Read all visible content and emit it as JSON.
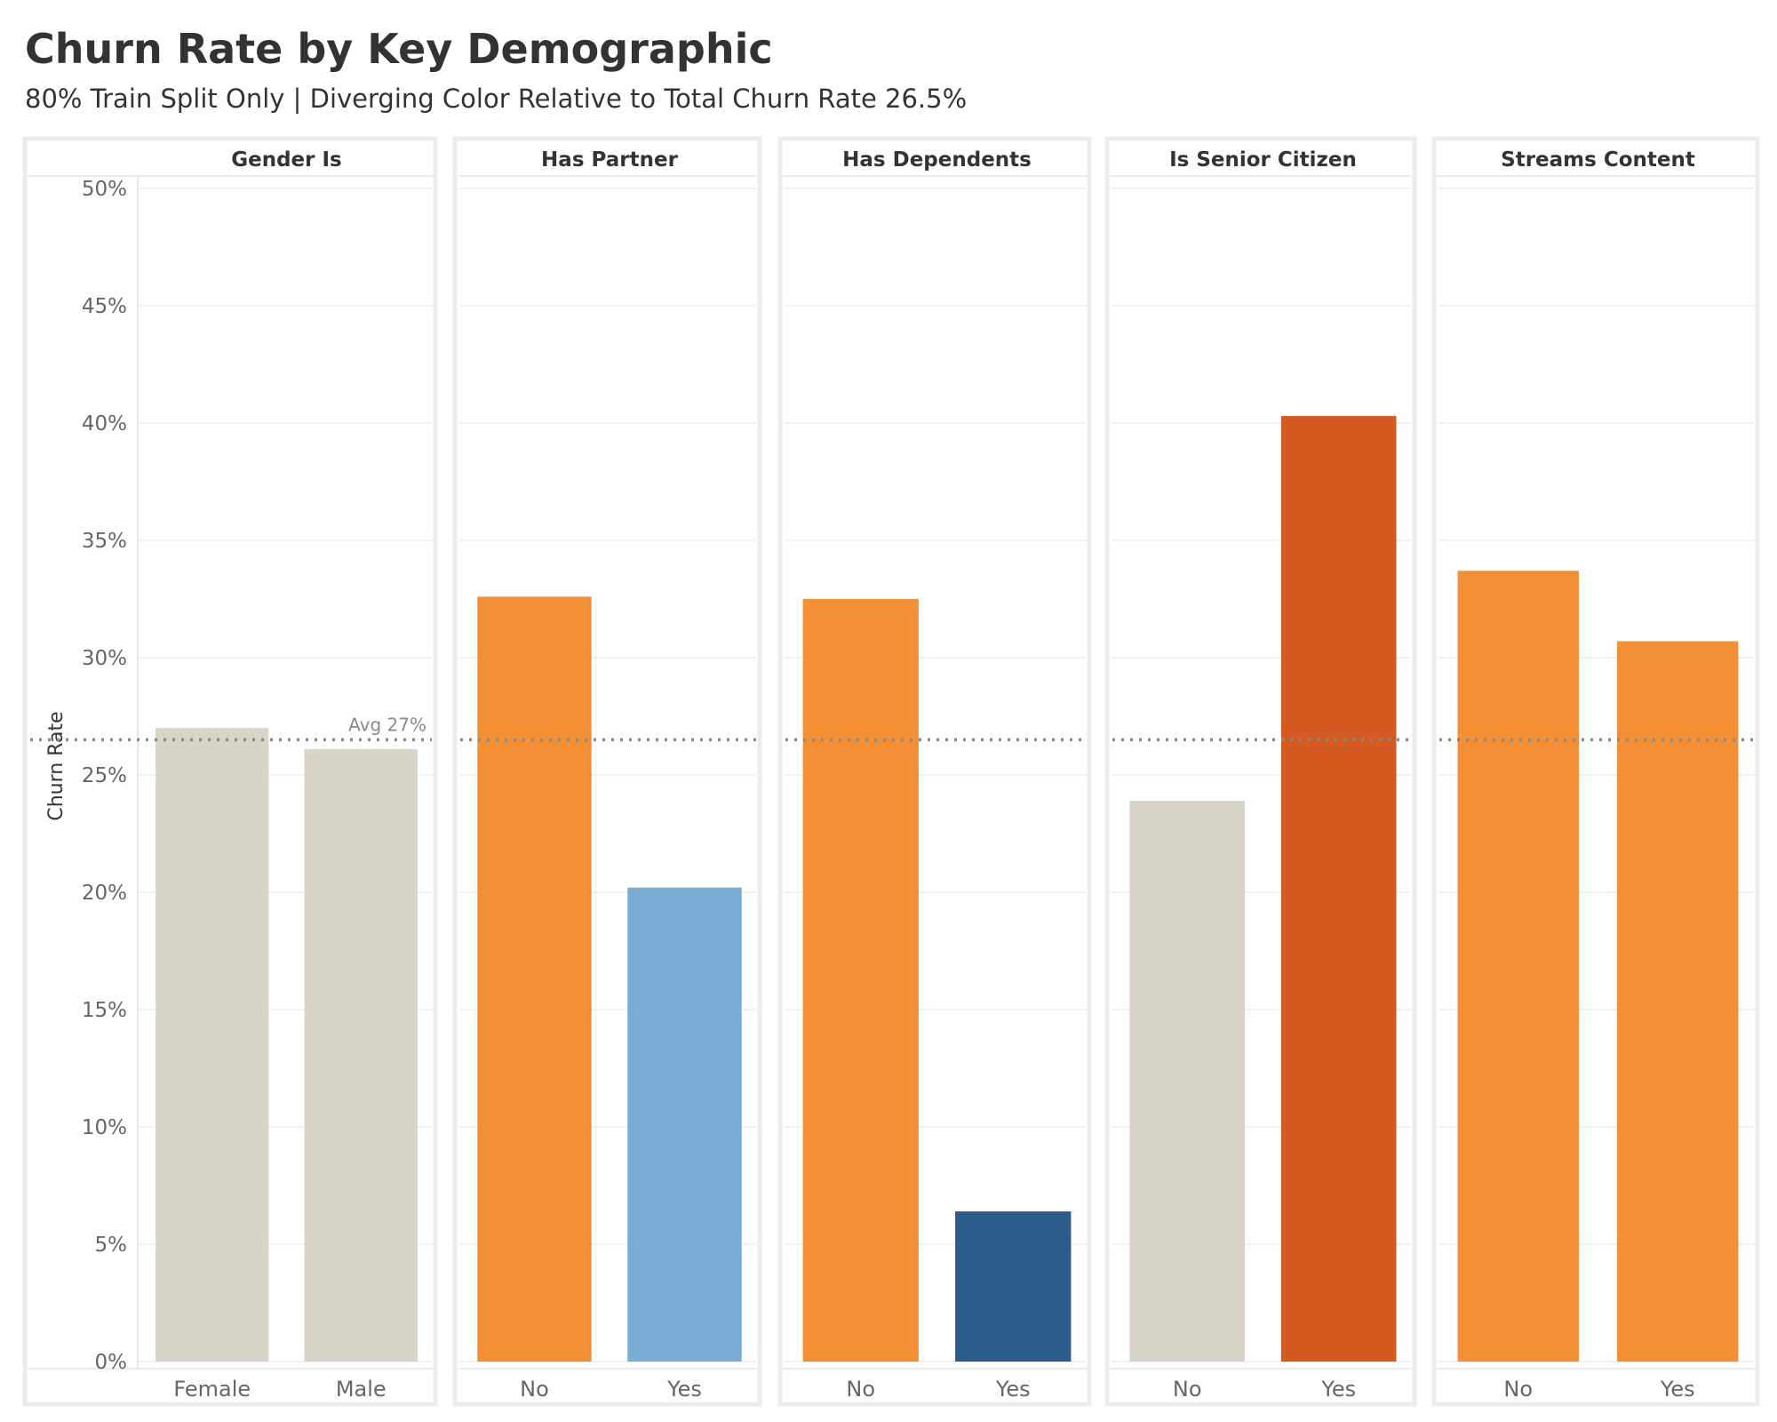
{
  "title": "Churn Rate by Key Demographic",
  "subtitle": "80% Train Split Only | Diverging Color Relative to Total Churn Rate 26.5%",
  "chart_data": {
    "type": "bar",
    "ylabel": "Churn Rate",
    "ylim": [
      0,
      50
    ],
    "yticks": [
      "0%",
      "5%",
      "10%",
      "15%",
      "20%",
      "25%",
      "30%",
      "35%",
      "40%",
      "45%",
      "50%"
    ],
    "reference_line": {
      "value": 26.5,
      "label": "Avg 27%",
      "style": "dotted",
      "color": "#888888"
    },
    "grid": true,
    "facets": [
      {
        "title": "Gender Is",
        "categories": [
          "Female",
          "Male"
        ],
        "values": [
          27.0,
          26.1
        ],
        "colors": [
          "#d8d4c8",
          "#d8d4c8"
        ]
      },
      {
        "title": "Has Partner",
        "categories": [
          "No",
          "Yes"
        ],
        "values": [
          32.6,
          20.2
        ],
        "colors": [
          "#f58f36",
          "#79acd2"
        ]
      },
      {
        "title": "Has Dependents",
        "categories": [
          "No",
          "Yes"
        ],
        "values": [
          32.5,
          6.4
        ],
        "colors": [
          "#f58f36",
          "#2c5d8a"
        ]
      },
      {
        "title": "Is Senior Citizen",
        "categories": [
          "No",
          "Yes"
        ],
        "values": [
          23.9,
          40.3
        ],
        "colors": [
          "#d8d4c8",
          "#d45a22"
        ]
      },
      {
        "title": "Streams Content",
        "categories": [
          "No",
          "Yes"
        ],
        "values": [
          33.7,
          30.7
        ],
        "colors": [
          "#f58f36",
          "#f58f36"
        ]
      }
    ]
  }
}
